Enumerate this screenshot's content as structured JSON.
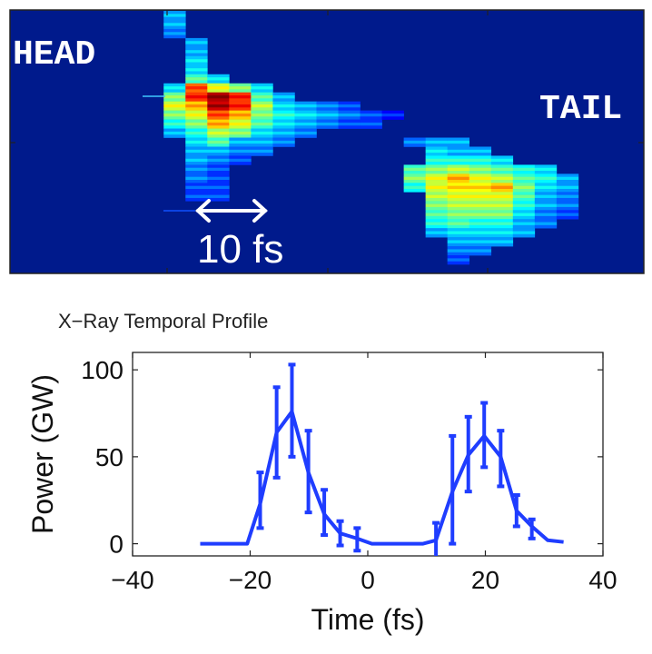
{
  "chart_data": [
    {
      "type": "heatmap",
      "labels": {
        "head": "HEAD",
        "tail": "TAIL",
        "scale_bar": "10 fs"
      },
      "colormap": "jet",
      "background": "#001a8c",
      "grid_columns": 29,
      "grid_rows": 29,
      "columns": [
        {
          "col": 7,
          "start_row": 0,
          "values": [
            0.3,
            0.3,
            0.25
          ]
        },
        {
          "col": 7,
          "start_row": 8,
          "values": [
            0.35,
            0.5,
            0.6,
            0.5,
            0.4,
            0.3
          ]
        },
        {
          "col": 8,
          "start_row": 3,
          "values": [
            0.3,
            0.3,
            0.35,
            0.35,
            0.45,
            0.8,
            0.85,
            0.7,
            0.6,
            0.5,
            0.4,
            0.35,
            0.3,
            0.3,
            0.25,
            0.25,
            0.2,
            0.2
          ]
        },
        {
          "col": 9,
          "start_row": 7,
          "values": [
            0.35,
            0.6,
            0.98,
            0.95,
            0.8,
            0.7,
            0.55,
            0.45,
            0.3,
            0.25,
            0.2,
            0.2,
            0.2,
            0.2
          ]
        },
        {
          "col": 10,
          "start_row": 8,
          "values": [
            0.5,
            0.85,
            0.85,
            0.7,
            0.6,
            0.5,
            0.3,
            0.25,
            0.2
          ]
        },
        {
          "col": 11,
          "start_row": 8,
          "values": [
            0.35,
            0.45,
            0.55,
            0.5,
            0.45,
            0.35,
            0.3,
            0.25
          ]
        },
        {
          "col": 12,
          "start_row": 9,
          "values": [
            0.3,
            0.35,
            0.4,
            0.35,
            0.3,
            0.25
          ]
        },
        {
          "col": 13,
          "start_row": 10,
          "values": [
            0.3,
            0.35,
            0.3,
            0.25
          ]
        },
        {
          "col": 14,
          "start_row": 10,
          "values": [
            0.25,
            0.3,
            0.25
          ]
        },
        {
          "col": 15,
          "start_row": 10,
          "values": [
            0.2,
            0.25,
            0.2
          ]
        },
        {
          "col": 16,
          "start_row": 11,
          "values": [
            0.2,
            0.2
          ]
        },
        {
          "col": 17,
          "start_row": 11,
          "values": [
            0.15
          ]
        },
        {
          "col": 18,
          "start_row": 14,
          "values": [
            0.25
          ]
        },
        {
          "col": 18,
          "start_row": 17,
          "values": [
            0.45,
            0.5,
            0.4
          ]
        },
        {
          "col": 19,
          "start_row": 14,
          "values": [
            0.3,
            0.35,
            0.4,
            0.5,
            0.6,
            0.6,
            0.55,
            0.5,
            0.45,
            0.4,
            0.3
          ]
        },
        {
          "col": 20,
          "start_row": 14,
          "values": [
            0.3,
            0.3,
            0.4,
            0.55,
            0.7,
            0.65,
            0.6,
            0.55,
            0.5,
            0.45,
            0.35,
            0.3,
            0.25,
            0.2
          ]
        },
        {
          "col": 21,
          "start_row": 15,
          "values": [
            0.3,
            0.4,
            0.5,
            0.6,
            0.65,
            0.6,
            0.55,
            0.5,
            0.4,
            0.35,
            0.3,
            0.25
          ]
        },
        {
          "col": 22,
          "start_row": 16,
          "values": [
            0.35,
            0.45,
            0.55,
            0.7,
            0.6,
            0.55,
            0.5,
            0.4,
            0.35,
            0.3
          ]
        },
        {
          "col": 23,
          "start_row": 17,
          "values": [
            0.4,
            0.45,
            0.5,
            0.45,
            0.4,
            0.35,
            0.3,
            0.3
          ]
        },
        {
          "col": 24,
          "start_row": 17,
          "values": [
            0.35,
            0.4,
            0.35,
            0.3,
            0.3,
            0.25,
            0.25
          ]
        },
        {
          "col": 25,
          "start_row": 18,
          "values": [
            0.3,
            0.3,
            0.25,
            0.25,
            0.2
          ]
        }
      ]
    },
    {
      "type": "line",
      "title": "X−Ray Temporal Profile",
      "xlabel": "Time (fs)",
      "ylabel": "Power (GW)",
      "xlim": [
        -40,
        40
      ],
      "ylim": [
        -7,
        110
      ],
      "xticks": [
        -40,
        -20,
        0,
        20,
        40
      ],
      "xtick_labels": [
        "−40",
        "−20",
        "0",
        "20",
        "40"
      ],
      "yticks": [
        0,
        50,
        100
      ],
      "ytick_labels": [
        "0",
        "50",
        "100"
      ],
      "grid": false,
      "color": "#1f3dff",
      "x": [
        -28.5,
        -20.5,
        -18.3,
        -15.5,
        -12.9,
        -10.1,
        -7.4,
        -4.7,
        -1.8,
        0.7,
        9.4,
        11.6,
        14.4,
        17.1,
        19.8,
        22.6,
        25.3,
        27.9,
        30.6,
        33.3
      ],
      "y": [
        0,
        0,
        23,
        64,
        76,
        41,
        17,
        6,
        3,
        0,
        0,
        2,
        30,
        51,
        62,
        50,
        19,
        10,
        2,
        1
      ],
      "error_bars": [
        {
          "x": -18.3,
          "low": 9,
          "high": 41
        },
        {
          "x": -15.5,
          "low": 38,
          "high": 90
        },
        {
          "x": -12.9,
          "low": 50,
          "high": 103
        },
        {
          "x": -10.1,
          "low": 18,
          "high": 65
        },
        {
          "x": -7.4,
          "low": 5,
          "high": 31
        },
        {
          "x": -4.7,
          "low": -1,
          "high": 13
        },
        {
          "x": -1.8,
          "low": -4,
          "high": 9
        },
        {
          "x": 11.6,
          "low": -8,
          "high": 12
        },
        {
          "x": 14.4,
          "low": 0,
          "high": 62
        },
        {
          "x": 17.1,
          "low": 30,
          "high": 73
        },
        {
          "x": 19.8,
          "low": 44,
          "high": 81
        },
        {
          "x": 22.6,
          "low": 33,
          "high": 65
        },
        {
          "x": 25.3,
          "low": 10,
          "high": 28
        },
        {
          "x": 27.9,
          "low": 3,
          "high": 14
        }
      ]
    }
  ]
}
